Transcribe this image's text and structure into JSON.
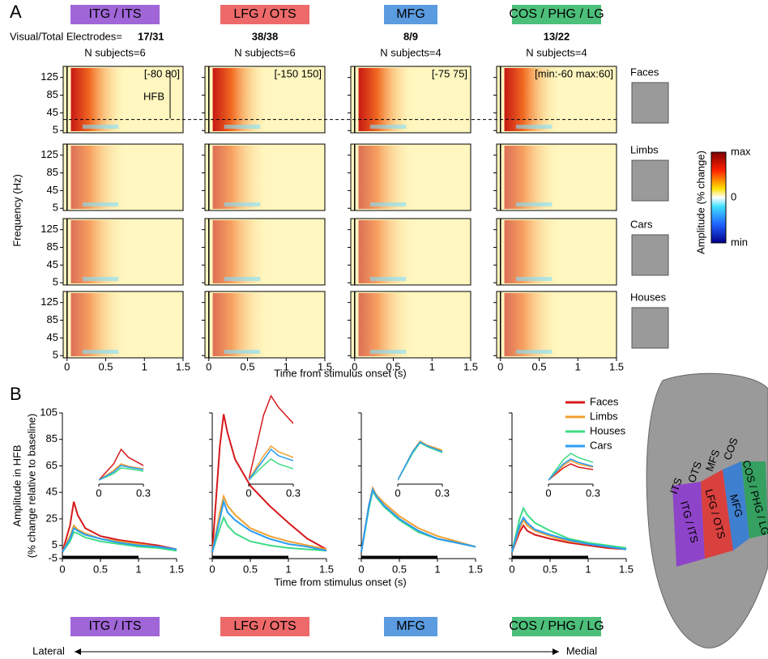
{
  "panel_a": {
    "label": "A",
    "electrodes_label": "Visual/Total Electrodes=",
    "regions": [
      {
        "name": "ITG / ITS",
        "color": "#a066d8",
        "electrodes": "17/31",
        "subjects": "N subjects=6",
        "range": "[-80 80]"
      },
      {
        "name": "LFG / OTS",
        "color": "#ee6a6a",
        "electrodes": "38/38",
        "subjects": "N subjects=6",
        "range": "[-150 150]"
      },
      {
        "name": "MFG",
        "color": "#5b9be0",
        "electrodes": "8/9",
        "subjects": "N subjects=4",
        "range": "[-75 75]"
      },
      {
        "name": "COS / PHG / LG",
        "color": "#4cbf7a",
        "electrodes": "13/22",
        "subjects": "N subjects=4",
        "range": "[min:-60  max:60]"
      }
    ],
    "categories": [
      {
        "name": "Faces",
        "color": "#e8262b"
      },
      {
        "name": "Limbs",
        "color": "#f0a030"
      },
      {
        "name": "Cars",
        "color": "#3cb4e6"
      },
      {
        "name": "Houses",
        "color": "#3ddc84"
      }
    ],
    "ylim": [
      0,
      150
    ],
    "yticks": [
      5,
      45,
      85,
      125
    ],
    "xlim": [
      -0.05,
      1.5
    ],
    "xticks": [
      0,
      0.5,
      1,
      1.5
    ],
    "y_label": "Frequency (Hz)",
    "x_label": "Time from stimulus onset (s)",
    "hfb_label": "HFB",
    "colorbar": {
      "label": "Amplitude (% change)",
      "ticks": [
        "max",
        "0",
        "min"
      ]
    }
  },
  "panel_b": {
    "label": "B",
    "y_label": "Amplitude in HFB",
    "y_sublabel": "(% change relative to baseline)",
    "x_label": "Time from stimulus onset (s)"
  },
  "chart_data": [
    {
      "type": "line",
      "x": [
        0,
        0.1,
        0.15,
        0.2,
        0.3,
        0.5,
        0.75,
        1.0,
        1.25,
        1.5
      ],
      "xlim": [
        0,
        1.5
      ],
      "xticks": [
        0,
        0.5,
        1,
        1.5
      ],
      "ylim": [
        -5,
        105
      ],
      "yticks": [
        -5,
        5,
        25,
        45,
        65,
        85,
        105
      ],
      "inset_xlim": [
        0,
        0.3
      ],
      "inset_xticks": [
        0,
        0.3
      ],
      "series": [
        {
          "name": "Faces",
          "color": "#d7191c",
          "values": [
            0,
            20,
            38,
            28,
            18,
            12,
            9,
            7,
            5,
            2
          ]
        },
        {
          "name": "Limbs",
          "color": "#f0a030",
          "values": [
            0,
            12,
            20,
            17,
            14,
            10,
            8,
            6,
            4,
            2
          ]
        },
        {
          "name": "Houses",
          "color": "#3ddc84",
          "values": [
            0,
            8,
            15,
            14,
            11,
            8,
            6,
            4,
            3,
            1
          ]
        },
        {
          "name": "Cars",
          "color": "#2a9df4",
          "values": [
            0,
            10,
            18,
            16,
            13,
            10,
            7,
            5,
            4,
            2
          ]
        }
      ]
    },
    {
      "type": "line",
      "x": [
        0,
        0.1,
        0.15,
        0.2,
        0.3,
        0.5,
        0.75,
        1.0,
        1.25,
        1.5
      ],
      "xlim": [
        0,
        1.5
      ],
      "xticks": [
        0,
        0.5,
        1,
        1.5
      ],
      "ylim": [
        -5,
        105
      ],
      "yticks": [
        -5,
        5,
        25,
        45,
        65,
        85,
        105
      ],
      "inset_xlim": [
        0,
        0.3
      ],
      "inset_xticks": [
        0,
        0.3
      ],
      "series": [
        {
          "name": "Faces",
          "color": "#d7191c",
          "values": [
            0,
            80,
            104,
            90,
            70,
            50,
            35,
            22,
            10,
            2
          ]
        },
        {
          "name": "Limbs",
          "color": "#f0a030",
          "values": [
            0,
            30,
            42,
            35,
            28,
            18,
            12,
            8,
            5,
            2
          ]
        },
        {
          "name": "Houses",
          "color": "#3ddc84",
          "values": [
            0,
            18,
            26,
            20,
            14,
            8,
            5,
            3,
            2,
            1
          ]
        },
        {
          "name": "Cars",
          "color": "#2a9df4",
          "values": [
            0,
            25,
            38,
            30,
            24,
            16,
            10,
            6,
            4,
            1
          ]
        }
      ]
    },
    {
      "type": "line",
      "x": [
        0,
        0.1,
        0.15,
        0.2,
        0.3,
        0.5,
        0.75,
        1.0,
        1.25,
        1.5
      ],
      "xlim": [
        0,
        1.5
      ],
      "xticks": [
        0,
        0.5,
        1,
        1.5
      ],
      "ylim": [
        -5,
        105
      ],
      "yticks": [
        -5,
        5,
        25,
        45,
        65,
        85,
        105
      ],
      "inset_xlim": [
        0,
        0.3
      ],
      "inset_xticks": [
        0,
        0.3
      ],
      "series": [
        {
          "name": "Faces",
          "color": "#d7191c",
          "values": [
            0,
            35,
            48,
            42,
            35,
            25,
            15,
            10,
            7,
            4
          ]
        },
        {
          "name": "Limbs",
          "color": "#f0a030",
          "values": [
            0,
            35,
            48,
            43,
            37,
            27,
            18,
            12,
            8,
            4
          ]
        },
        {
          "name": "Houses",
          "color": "#3ddc84",
          "values": [
            0,
            33,
            46,
            41,
            34,
            24,
            15,
            10,
            7,
            4
          ]
        },
        {
          "name": "Cars",
          "color": "#2a9df4",
          "values": [
            0,
            35,
            47,
            42,
            35,
            25,
            16,
            10,
            7,
            4
          ]
        }
      ]
    },
    {
      "type": "line",
      "x": [
        0,
        0.1,
        0.15,
        0.2,
        0.3,
        0.5,
        0.75,
        1.0,
        1.25,
        1.5
      ],
      "xlim": [
        0,
        1.5
      ],
      "xticks": [
        0,
        0.5,
        1,
        1.5
      ],
      "ylim": [
        -5,
        105
      ],
      "yticks": [
        -5,
        5,
        25,
        45,
        65,
        85,
        105
      ],
      "inset_xlim": [
        0,
        0.3
      ],
      "inset_xticks": [
        0,
        0.3
      ],
      "series": [
        {
          "name": "Faces",
          "color": "#d7191c",
          "values": [
            0,
            15,
            20,
            16,
            13,
            10,
            7,
            5,
            3,
            2
          ]
        },
        {
          "name": "Limbs",
          "color": "#f0a030",
          "values": [
            0,
            18,
            24,
            20,
            16,
            12,
            8,
            6,
            4,
            2
          ]
        },
        {
          "name": "Houses",
          "color": "#3ddc84",
          "values": [
            0,
            25,
            33,
            28,
            22,
            16,
            10,
            7,
            5,
            3
          ]
        },
        {
          "name": "Cars",
          "color": "#2a9df4",
          "values": [
            0,
            20,
            26,
            22,
            17,
            13,
            9,
            6,
            4,
            2
          ]
        }
      ]
    }
  ],
  "bottom": {
    "lateral": "Lateral",
    "medial": "Medial"
  },
  "brain": {
    "sulci": [
      "ITS",
      "OTS",
      "MFS",
      "COS"
    ]
  }
}
